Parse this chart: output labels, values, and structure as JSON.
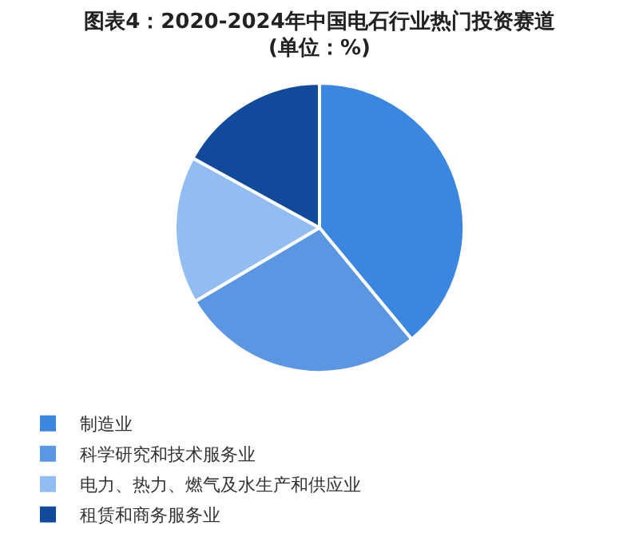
{
  "chart_data": {
    "type": "pie",
    "title": "图表4：2020-2024年中国电石行业热门投资赛道\n(单位：%)",
    "categories": [
      "制造业",
      "科学研究和技术服务业",
      "电力、热力、燃气及水生产和供应业",
      "租赁和商务服务业"
    ],
    "values": [
      39,
      27.5,
      16.5,
      17
    ],
    "colors": [
      "#3a86e0",
      "#5b96e3",
      "#92bdf2",
      "#114a9b"
    ],
    "legend": "bottom"
  }
}
